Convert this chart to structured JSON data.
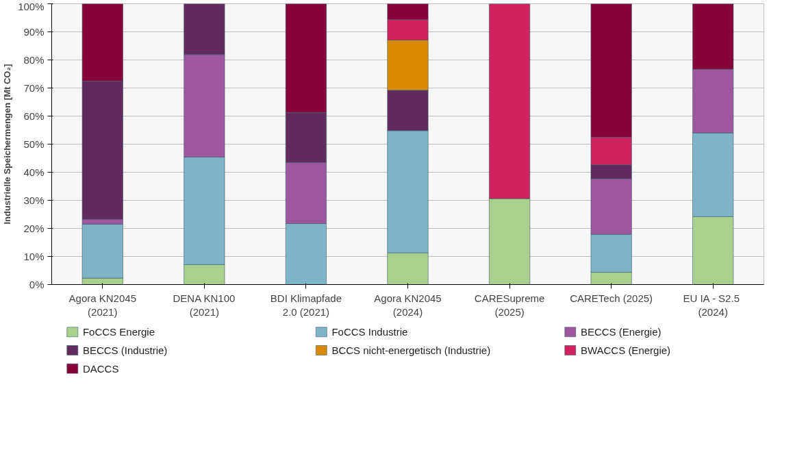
{
  "chart_data": {
    "type": "bar",
    "stacked": true,
    "ylabel": "Industrielle Speichermengen [Mt CO₂]",
    "categories": [
      "Agora KN2045\n(2021)",
      "DENA KN100\n(2021)",
      "BDI Klimapfade\n2.0 (2021)",
      "Agora KN2045\n(2024)",
      "CARESupreme\n(2025)",
      "CARETech (2025)",
      "EU IA  - S2.5\n(2024)"
    ],
    "ylim": [
      0,
      100
    ],
    "yticks": [
      {
        "value": 0,
        "label": "0%"
      },
      {
        "value": 10,
        "label": "10%"
      },
      {
        "value": 20,
        "label": "20%"
      },
      {
        "value": 30,
        "label": "30%"
      },
      {
        "value": 40,
        "label": "40%"
      },
      {
        "value": 50,
        "label": "50%"
      },
      {
        "value": 60,
        "label": "60%"
      },
      {
        "value": 70,
        "label": "70%"
      },
      {
        "value": 80,
        "label": "80%"
      },
      {
        "value": 90,
        "label": "90%"
      },
      {
        "value": 100,
        "label": "100%"
      }
    ],
    "grid": "y",
    "legend": "bottom",
    "series": [
      {
        "name": "FoCCS Energie",
        "color": "#a9d18e",
        "values": [
          2.3,
          7.1,
          0,
          11.3,
          30.6,
          4.4,
          24.2
        ]
      },
      {
        "name": "FoCCS Industrie",
        "color": "#7fb3c8",
        "values": [
          19.2,
          38.3,
          21.7,
          43.5,
          0,
          13.5,
          29.8
        ]
      },
      {
        "name": "BECCS (Energie)",
        "color": "#9e58a0",
        "values": [
          1.8,
          36.5,
          21.8,
          0,
          0,
          19.8,
          22.7
        ]
      },
      {
        "name": "BECCS (Industrie)",
        "color": "#622b60",
        "values": [
          49.2,
          18.1,
          17.8,
          14.4,
          0,
          5.0,
          0
        ]
      },
      {
        "name": "BCCS nicht-energetisch (Industrie)",
        "color": "#d88a00",
        "values": [
          0,
          0,
          0,
          17.9,
          0,
          0,
          0
        ]
      },
      {
        "name": "BWACCS (Energie)",
        "color": "#d0225e",
        "values": [
          0,
          0,
          0,
          7.3,
          69.4,
          9.8,
          0
        ]
      },
      {
        "name": "DACCS",
        "color": "#860439",
        "values": [
          27.5,
          0,
          38.7,
          5.6,
          0,
          47.5,
          23.3
        ]
      }
    ]
  }
}
